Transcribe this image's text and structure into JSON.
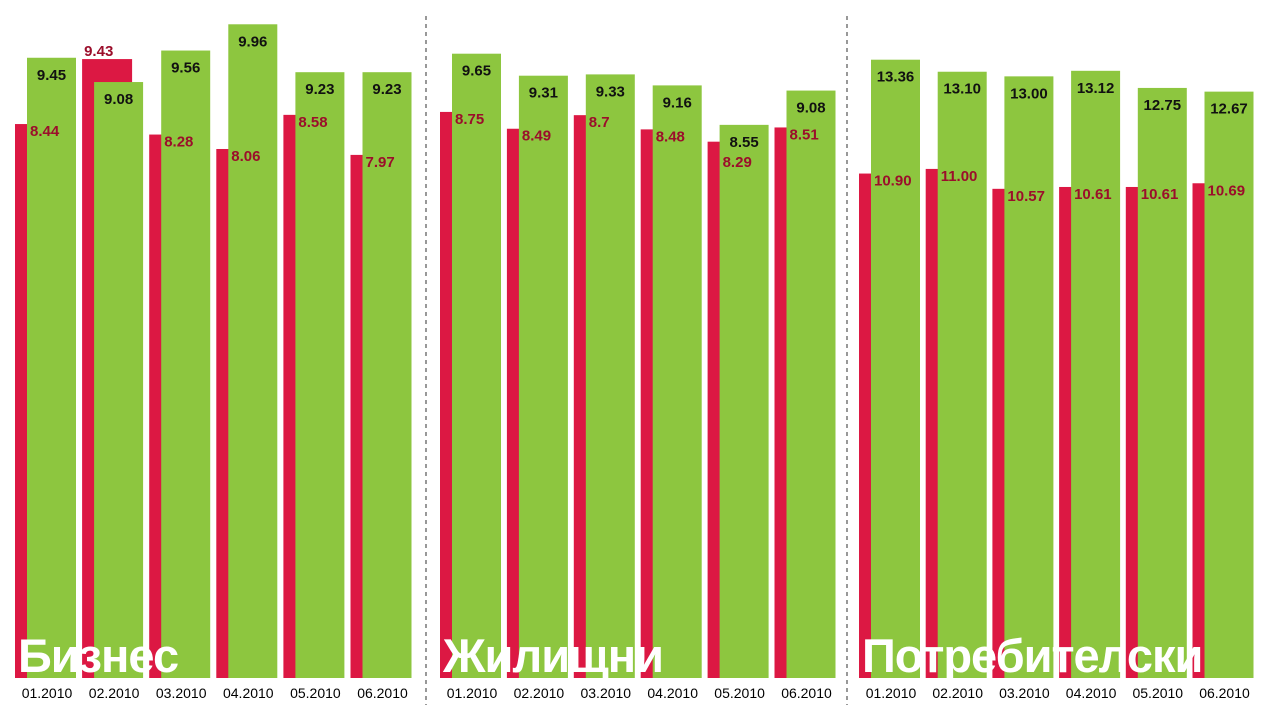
{
  "colors": {
    "red": "#DC1843",
    "green": "#8DC63F",
    "red_label": "#9B0E2B",
    "green_label": "#111111",
    "panel_title": "#ffffff",
    "divider": "#555555"
  },
  "chart_data": [
    {
      "type": "bar",
      "title": "Бизнес",
      "categories": [
        "01.2010",
        "02.2010",
        "03.2010",
        "04.2010",
        "05.2010",
        "06.2010"
      ],
      "series": [
        {
          "color": "red",
          "values": [
            8.44,
            9.43,
            8.28,
            8.06,
            8.58,
            7.97
          ],
          "labels": [
            "8.44",
            "9.43",
            "8.28",
            "8.06",
            "8.58",
            "7.97"
          ]
        },
        {
          "color": "green",
          "values": [
            9.45,
            9.08,
            9.56,
            9.96,
            9.23,
            9.23
          ],
          "labels": [
            "9.45",
            "9.08",
            "9.56",
            "9.96",
            "9.23",
            "9.23"
          ]
        }
      ],
      "ylim": [
        0,
        10.33
      ]
    },
    {
      "type": "bar",
      "title": "Жилищни",
      "categories": [
        "01.2010",
        "02.2010",
        "03.2010",
        "04.2010",
        "05.2010",
        "06.2010"
      ],
      "series": [
        {
          "color": "red",
          "values": [
            8.75,
            8.49,
            8.7,
            8.48,
            8.29,
            8.51
          ],
          "labels": [
            "8.75",
            "8.49",
            "8.7",
            "8.48",
            "8.29",
            "8.51"
          ]
        },
        {
          "color": "green",
          "values": [
            9.65,
            9.31,
            9.33,
            9.16,
            8.55,
            9.08
          ],
          "labels": [
            "9.65",
            "9.31",
            "9.33",
            "9.16",
            "8.55",
            "9.08"
          ]
        }
      ],
      "ylim": [
        0,
        10.48
      ]
    },
    {
      "type": "bar",
      "title": "Потребителски",
      "categories": [
        "01.2010",
        "02.2010",
        "03.2010",
        "04.2010",
        "05.2010",
        "06.2010"
      ],
      "series": [
        {
          "color": "red",
          "values": [
            10.9,
            11.0,
            10.57,
            10.61,
            10.61,
            10.69
          ],
          "labels": [
            "10.90",
            "11.00",
            "10.57",
            "10.61",
            "10.61",
            "10.69"
          ]
        },
        {
          "color": "green",
          "values": [
            13.36,
            13.1,
            13.0,
            13.12,
            12.75,
            12.67
          ],
          "labels": [
            "13.36",
            "13.10",
            "13.00",
            "13.12",
            "12.75",
            "12.67"
          ]
        }
      ],
      "ylim": [
        0,
        14.65
      ]
    }
  ]
}
